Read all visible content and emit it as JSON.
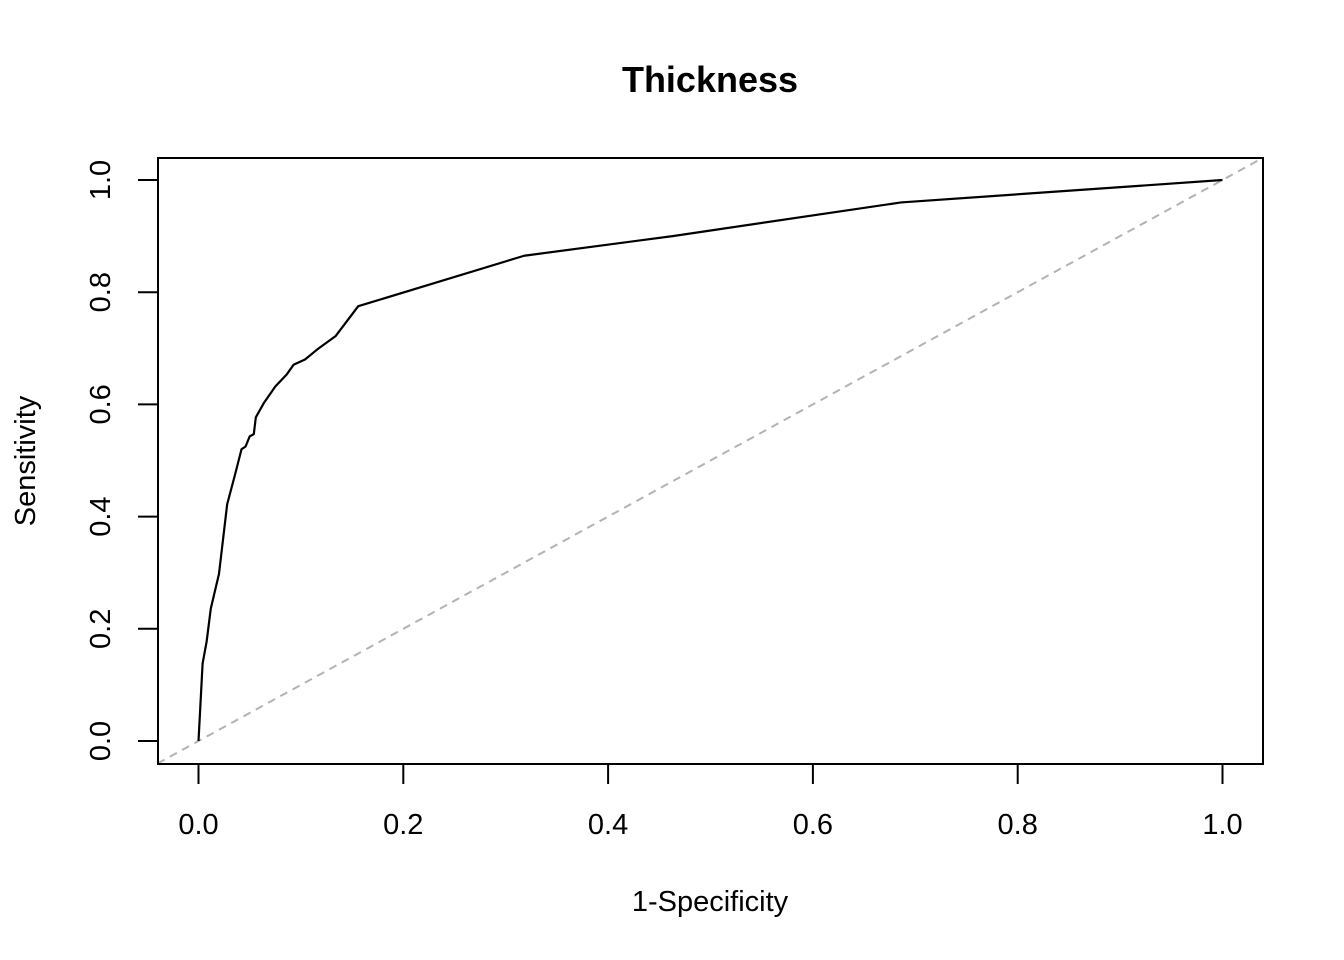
{
  "chart_data": {
    "type": "line",
    "title": "Thickness",
    "xlabel": "1-Specificity",
    "ylabel": "Sensitivity",
    "xlim": [
      0.0,
      1.0
    ],
    "ylim": [
      0.0,
      1.0
    ],
    "x_ticks": [
      "0.0",
      "0.2",
      "0.4",
      "0.6",
      "0.8",
      "1.0"
    ],
    "y_ticks": [
      "0.0",
      "0.2",
      "0.4",
      "0.6",
      "0.8",
      "1.0"
    ],
    "grid": false,
    "series": [
      {
        "color": "#000000",
        "style": "solid",
        "x": [
          0.0,
          0.004,
          0.008,
          0.012,
          0.02,
          0.028,
          0.036,
          0.042,
          0.046,
          0.05,
          0.054,
          0.056,
          0.064,
          0.075,
          0.086,
          0.093,
          0.104,
          0.116,
          0.134,
          0.156,
          0.318,
          0.463,
          0.686,
          1.0
        ],
        "y": [
          0.0,
          0.138,
          0.178,
          0.236,
          0.298,
          0.422,
          0.477,
          0.52,
          0.525,
          0.543,
          0.547,
          0.577,
          0.603,
          0.632,
          0.653,
          0.671,
          0.68,
          0.698,
          0.722,
          0.775,
          0.865,
          0.9,
          0.96,
          1.0
        ]
      },
      {
        "color": "#b3b3b3",
        "style": "dashed",
        "x": [
          -0.04,
          1.04
        ],
        "y": [
          -0.04,
          1.04
        ]
      }
    ]
  }
}
